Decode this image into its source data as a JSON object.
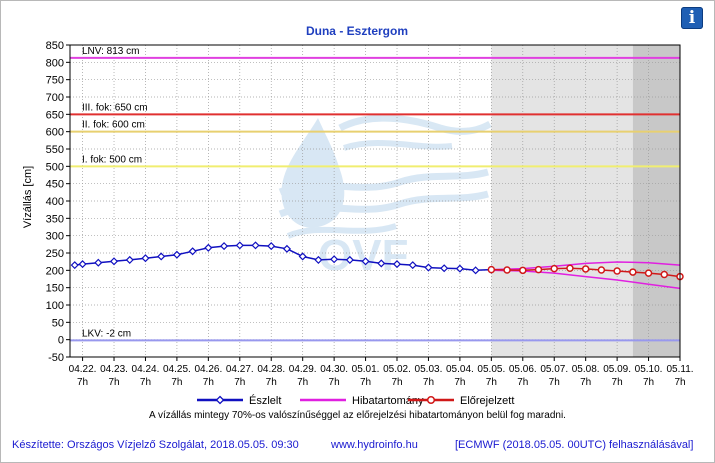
{
  "header": {
    "info_icon_label": "i"
  },
  "chart_data": {
    "type": "line",
    "title": "Duna - Esztergom",
    "ylabel": "Vízállás [cm]",
    "xlabel": "",
    "ylim": [
      -50,
      850
    ],
    "y_ticks": [
      -50,
      0,
      50,
      100,
      150,
      200,
      250,
      300,
      350,
      400,
      450,
      500,
      550,
      600,
      650,
      700,
      750,
      800,
      850
    ],
    "grid": true,
    "legend_position": "bottom",
    "x_ticks": [
      {
        "date": "04.22.",
        "time": "7h"
      },
      {
        "date": "04.23.",
        "time": "7h"
      },
      {
        "date": "04.24.",
        "time": "7h"
      },
      {
        "date": "04.25.",
        "time": "7h"
      },
      {
        "date": "04.26.",
        "time": "7h"
      },
      {
        "date": "04.27.",
        "time": "7h"
      },
      {
        "date": "04.28.",
        "time": "7h"
      },
      {
        "date": "04.29.",
        "time": "7h"
      },
      {
        "date": "04.30.",
        "time": "7h"
      },
      {
        "date": "05.01.",
        "time": "7h"
      },
      {
        "date": "05.02.",
        "time": "7h"
      },
      {
        "date": "05.03.",
        "time": "7h"
      },
      {
        "date": "05.04.",
        "time": "7h"
      },
      {
        "date": "05.05.",
        "time": "7h"
      },
      {
        "date": "05.06.",
        "time": "7h"
      },
      {
        "date": "05.07.",
        "time": "7h"
      },
      {
        "date": "05.08.",
        "time": "7h"
      },
      {
        "date": "05.09.",
        "time": "7h"
      },
      {
        "date": "05.10.",
        "time": "7h"
      },
      {
        "date": "05.11.",
        "time": "7h"
      }
    ],
    "reference_lines": [
      {
        "label": "LNV: 813 cm",
        "value": 813,
        "color": "#e040e0"
      },
      {
        "label": "III. fok: 650 cm",
        "value": 650,
        "color": "#e03030"
      },
      {
        "label": "II. fok: 600 cm",
        "value": 600,
        "color": "#e8d070"
      },
      {
        "label": "I. fok: 500 cm",
        "value": 500,
        "color": "#f0ee70"
      },
      {
        "label": "LKV: -2 cm",
        "value": -2,
        "color": "#9898ee"
      }
    ],
    "forecast_shade": [
      {
        "from_day": 13,
        "to_day": 17.5,
        "color": "#e4e4e4"
      },
      {
        "from_day": 17.5,
        "to_day": 19,
        "color": "#c8c8c8"
      }
    ],
    "series": [
      {
        "name": "Észlelt",
        "color": "#1010c0",
        "x_day": [
          -0.25,
          0,
          0.5,
          1,
          1.5,
          2,
          2.5,
          3,
          3.5,
          4,
          4.5,
          5,
          5.5,
          6,
          6.5,
          7,
          7.5,
          8,
          8.5,
          9,
          9.5,
          10,
          10.5,
          11,
          11.5,
          12,
          12.5,
          13
        ],
        "y": [
          215,
          218,
          222,
          226,
          230,
          235,
          240,
          245,
          255,
          265,
          270,
          272,
          272,
          270,
          262,
          240,
          230,
          232,
          230,
          226,
          220,
          218,
          215,
          208,
          206,
          205,
          200,
          202
        ]
      },
      {
        "name": "Hibatartomány",
        "color": "#e020e0",
        "upper_x_day": [
          13,
          14,
          15,
          16,
          17,
          18,
          19
        ],
        "upper_y": [
          202,
          205,
          212,
          220,
          224,
          222,
          215
        ],
        "lower_x_day": [
          13,
          14,
          15,
          16,
          17,
          18,
          19
        ],
        "lower_y": [
          200,
          198,
          192,
          182,
          172,
          160,
          148
        ]
      },
      {
        "name": "Előrejelzett",
        "color": "#d01818",
        "x_day": [
          13,
          13.5,
          14,
          14.5,
          15,
          15.5,
          16,
          16.5,
          17,
          17.5,
          18,
          18.5,
          19
        ],
        "y": [
          202,
          201,
          200,
          202,
          205,
          206,
          204,
          201,
          198,
          195,
          192,
          188,
          182
        ]
      }
    ],
    "annotation": "A vízállás mintegy 70%-os valószínűséggel az előrejelzési hibatartományon belül fog maradni."
  },
  "footer": {
    "credit": "Készítette: Országos Vízjelző Szolgálat, 2018.05.05. 09:30",
    "website": "www.hydroinfo.hu",
    "model_note": "[ECMWF (2018.05.05. 00UTC) felhasználásával]"
  }
}
